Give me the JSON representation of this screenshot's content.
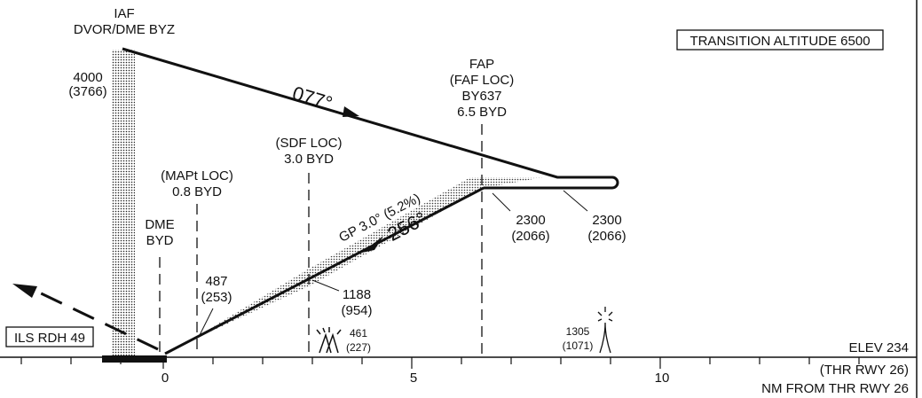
{
  "transition_altitude": "TRANSITION ALTITUDE 6500",
  "iaf": {
    "line1": "IAF",
    "line2": "DVOR/DME BYZ",
    "alt1": "4000",
    "alt2": "(3766)"
  },
  "inbound_course": "077°",
  "fap": {
    "line1": "FAP",
    "line2": "(FAF LOC)",
    "line3": "BY637",
    "line4": "6.5 BYD"
  },
  "sdf": {
    "line1": "(SDF LOC)",
    "line2": "3.0 BYD"
  },
  "mapt": {
    "line1": "(MAPt LOC)",
    "line2": "0.8 BYD"
  },
  "dme": {
    "line1": "DME",
    "line2": "BYD"
  },
  "glidepath": {
    "label": "GP 3.0° (5.2%)",
    "course": "256°"
  },
  "alt_fap": {
    "alt": "2300",
    "hgt": "(2066)"
  },
  "alt_hold": {
    "alt": "2300",
    "hgt": "(2066)"
  },
  "alt_sdf": {
    "alt": "1188",
    "hgt": "(954)"
  },
  "alt_mapt": {
    "alt": "487",
    "hgt": "(253)"
  },
  "obstacle1": {
    "alt": "461",
    "hgt": "(227)"
  },
  "obstacle2": {
    "alt": "1305",
    "hgt": "(1071)"
  },
  "ils_rdh": "ILS RDH 49",
  "elev": "ELEV 234",
  "thr": "(THR RWY 26)",
  "nm_from": "NM FROM THR RWY 26",
  "scale": {
    "t0": "0",
    "t5": "5",
    "t10": "10"
  }
}
